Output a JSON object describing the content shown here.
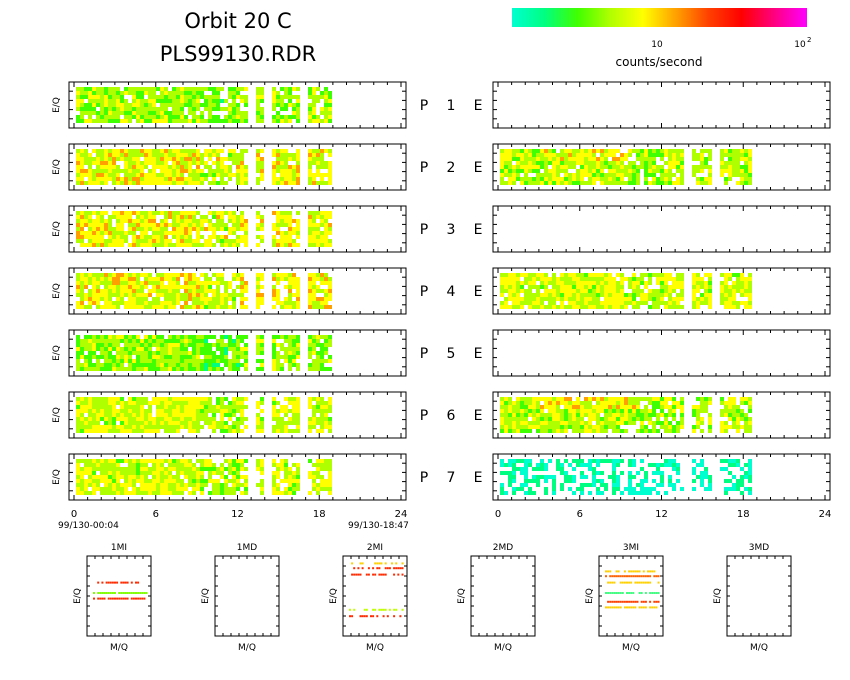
{
  "header": {
    "title_line1": "Orbit 20 C",
    "title_line2": "PLS99130.RDR"
  },
  "colorbar": {
    "colors": [
      "#00ffd0",
      "#00ff80",
      "#40ff00",
      "#b0ff00",
      "#ffff00",
      "#ffa000",
      "#ff4000",
      "#ff0000",
      "#ff0080",
      "#ff00ff"
    ],
    "tick_10": "10",
    "tick_100": "10",
    "tick_100_sup": "2",
    "unit_label": "counts/second"
  },
  "panel_labels": {
    "ylabel": "E/Q",
    "rows": [
      {
        "p": "P",
        "n": "1",
        "e": "E"
      },
      {
        "p": "P",
        "n": "2",
        "e": "E"
      },
      {
        "p": "P",
        "n": "3",
        "e": "E"
      },
      {
        "p": "P",
        "n": "4",
        "e": "E"
      },
      {
        "p": "P",
        "n": "5",
        "e": "E"
      },
      {
        "p": "P",
        "n": "6",
        "e": "E"
      },
      {
        "p": "P",
        "n": "7",
        "e": "E"
      }
    ]
  },
  "time_axis": {
    "ticks": [
      "0",
      "6",
      "12",
      "18",
      "24"
    ],
    "start_label": "99/130-00:04",
    "end_label": "99/130-18:47"
  },
  "chart_data": [
    {
      "type": "heatmap",
      "name": "left-spectrograms",
      "x_range_hours": [
        0,
        24
      ],
      "data_end_hours": 18.78,
      "gap_hours": [
        [
          12.5,
          13.1
        ],
        [
          13.8,
          14.3
        ],
        [
          16.4,
          16.9
        ]
      ],
      "rows": [
        {
          "index": 1,
          "has_data": true,
          "level": 0.33
        },
        {
          "index": 2,
          "has_data": true,
          "level": 0.42
        },
        {
          "index": 3,
          "has_data": true,
          "level": 0.42
        },
        {
          "index": 4,
          "has_data": true,
          "level": 0.42
        },
        {
          "index": 5,
          "has_data": true,
          "level": 0.3
        },
        {
          "index": 6,
          "has_data": true,
          "level": 0.38
        },
        {
          "index": 7,
          "has_data": true,
          "level": 0.38
        }
      ]
    },
    {
      "type": "heatmap",
      "name": "right-spectrograms",
      "x_range_hours": [
        0,
        24
      ],
      "data_end_hours": 18.6,
      "rows": [
        {
          "index": 1,
          "has_data": false
        },
        {
          "index": 2,
          "has_data": true,
          "level": 0.35,
          "hot_band": true
        },
        {
          "index": 3,
          "has_data": false
        },
        {
          "index": 4,
          "has_data": true,
          "level": 0.38,
          "hot_band": false
        },
        {
          "index": 5,
          "has_data": false
        },
        {
          "index": 6,
          "has_data": true,
          "level": 0.35,
          "hot_band": true
        },
        {
          "index": 7,
          "has_data": true,
          "level": 0.05,
          "hot_band": false
        }
      ]
    },
    {
      "type": "scatter",
      "name": "mass-panels",
      "xlabel": "M/Q",
      "ylabel": "E/Q",
      "panels": [
        {
          "label": "1MI",
          "has_data": true
        },
        {
          "label": "1MD",
          "has_data": false
        },
        {
          "label": "2MI",
          "has_data": true
        },
        {
          "label": "2MD",
          "has_data": false
        },
        {
          "label": "3MI",
          "has_data": true
        },
        {
          "label": "3MD",
          "has_data": false
        }
      ]
    }
  ]
}
